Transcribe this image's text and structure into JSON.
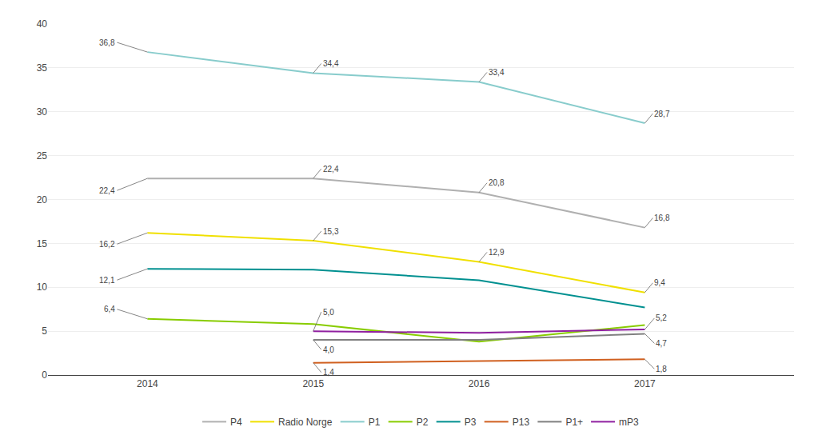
{
  "chart_data": {
    "type": "line",
    "x": [
      2014,
      2015,
      2016,
      2017
    ],
    "series": [
      {
        "name": "P4",
        "color": "#b0b0b0",
        "values": [
          22.4,
          22.4,
          20.8,
          16.8
        ]
      },
      {
        "name": "Radio Norge",
        "color": "#f0e000",
        "values": [
          16.2,
          15.3,
          12.9,
          9.4
        ]
      },
      {
        "name": "P1",
        "color": "#88cccc",
        "values": [
          36.8,
          34.4,
          33.4,
          28.7
        ]
      },
      {
        "name": "P2",
        "color": "#88cc00",
        "values": [
          6.4,
          5.8,
          3.8,
          5.7
        ]
      },
      {
        "name": "P3",
        "color": "#009090",
        "values": [
          12.1,
          12.0,
          10.8,
          7.7
        ]
      },
      {
        "name": "P13",
        "color": "#d06020",
        "values": [
          null,
          1.4,
          1.6,
          1.8
        ]
      },
      {
        "name": "P1+",
        "color": "#808080",
        "values": [
          null,
          4.0,
          4.0,
          4.7
        ]
      },
      {
        "name": "mP3",
        "color": "#9020a0",
        "values": [
          null,
          5.0,
          4.8,
          5.2
        ]
      }
    ],
    "xlim": [
      2013.4,
      2017.9
    ],
    "xticks": [
      2014,
      2015,
      2016,
      2017
    ],
    "ylim": [
      0,
      40
    ],
    "yticks": [
      0,
      5,
      10,
      15,
      20,
      25,
      30,
      35,
      40
    ],
    "grid": true,
    "legend": "bottom",
    "annotations": [
      {
        "text": "36,8",
        "x": 2014,
        "y": 36.8
      },
      {
        "text": "34,4",
        "x": 2015,
        "y": 34.4
      },
      {
        "text": "33,4",
        "x": 2016,
        "y": 33.4
      },
      {
        "text": "28,7",
        "x": 2017,
        "y": 28.7
      },
      {
        "text": "22,4",
        "x": 2014,
        "y": 22.4
      },
      {
        "text": "22,4",
        "x": 2015,
        "y": 22.4
      },
      {
        "text": "20,8",
        "x": 2016,
        "y": 20.8
      },
      {
        "text": "16,8",
        "x": 2017,
        "y": 16.8
      },
      {
        "text": "16,2",
        "x": 2014,
        "y": 16.2
      },
      {
        "text": "15,3",
        "x": 2015,
        "y": 15.3
      },
      {
        "text": "12,9",
        "x": 2016,
        "y": 12.9
      },
      {
        "text": "9,4",
        "x": 2017,
        "y": 9.4
      },
      {
        "text": "6,4",
        "x": 2014,
        "y": 6.4
      },
      {
        "text": "12,1",
        "x": 2014,
        "y": 12.1
      },
      {
        "text": "1,4",
        "x": 2015,
        "y": 1.4
      },
      {
        "text": "1,8",
        "x": 2017,
        "y": 1.8
      },
      {
        "text": "4,0",
        "x": 2015,
        "y": 4.0
      },
      {
        "text": "4,7",
        "x": 2017,
        "y": 4.7
      },
      {
        "text": "5,0",
        "x": 2015,
        "y": 5.0
      },
      {
        "text": "5,2",
        "x": 2017,
        "y": 5.2
      }
    ]
  }
}
